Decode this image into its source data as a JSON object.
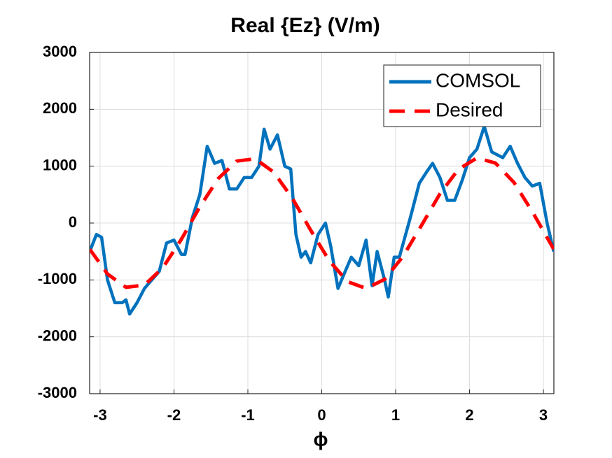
{
  "chart_data": {
    "type": "line",
    "title": "Real {Ez} (V/m)",
    "xlabel": "ϕ",
    "xlim": [
      -3.1416,
      3.1416
    ],
    "ylim": [
      -3000,
      3000
    ],
    "xticks": [
      -3,
      -2,
      -1,
      0,
      1,
      2,
      3
    ],
    "yticks": [
      -3000,
      -2000,
      -1000,
      0,
      1000,
      2000,
      3000
    ],
    "grid": true,
    "legend": "upper right",
    "series": [
      {
        "name": "COMSOL",
        "color": "#0072bd",
        "line_style": "solid",
        "x": [
          -3.14,
          -3.05,
          -2.98,
          -2.9,
          -2.8,
          -2.7,
          -2.65,
          -2.6,
          -2.5,
          -2.4,
          -2.3,
          -2.2,
          -2.1,
          -2.0,
          -1.9,
          -1.85,
          -1.75,
          -1.65,
          -1.55,
          -1.45,
          -1.35,
          -1.25,
          -1.15,
          -1.05,
          -0.95,
          -0.85,
          -0.78,
          -0.7,
          -0.6,
          -0.5,
          -0.42,
          -0.35,
          -0.28,
          -0.22,
          -0.15,
          -0.05,
          0.05,
          0.12,
          0.22,
          0.3,
          0.4,
          0.5,
          0.6,
          0.68,
          0.75,
          0.85,
          0.9,
          0.98,
          1.05,
          1.2,
          1.32,
          1.42,
          1.5,
          1.6,
          1.7,
          1.8,
          1.9,
          2.0,
          2.1,
          2.2,
          2.3,
          2.45,
          2.55,
          2.65,
          2.75,
          2.85,
          2.95,
          3.05,
          3.14
        ],
        "values": [
          -500,
          -200,
          -250,
          -1000,
          -1400,
          -1400,
          -1350,
          -1600,
          -1400,
          -1150,
          -1000,
          -850,
          -350,
          -300,
          -550,
          -550,
          100,
          500,
          1350,
          1050,
          1100,
          600,
          600,
          800,
          800,
          1000,
          1650,
          1300,
          1550,
          1000,
          950,
          -200,
          -600,
          -500,
          -700,
          -200,
          0,
          -400,
          -1150,
          -900,
          -600,
          -750,
          -300,
          -1100,
          -500,
          -1000,
          -1300,
          -600,
          -600,
          100,
          700,
          900,
          1050,
          800,
          400,
          400,
          750,
          1150,
          1300,
          1700,
          1250,
          1150,
          1350,
          1050,
          800,
          650,
          700,
          0,
          -500
        ]
      },
      {
        "name": "Desired",
        "color": "#ff0000",
        "line_style": "dashed",
        "x": [
          -3.14,
          -2.9,
          -2.65,
          -2.4,
          -2.15,
          -1.9,
          -1.65,
          -1.4,
          -1.15,
          -0.9,
          -0.65,
          -0.4,
          -0.15,
          0.1,
          0.35,
          0.6,
          0.85,
          1.1,
          1.35,
          1.6,
          1.85,
          2.1,
          2.35,
          2.6,
          2.85,
          3.14
        ],
        "values": [
          -460,
          -895,
          -1130,
          -1090,
          -785,
          -285,
          285,
          785,
          1090,
          1130,
          895,
          440,
          -125,
          -660,
          -1030,
          -1150,
          -990,
          -585,
          -40,
          515,
          945,
          1145,
          1055,
          715,
          200,
          -460
        ]
      }
    ]
  }
}
